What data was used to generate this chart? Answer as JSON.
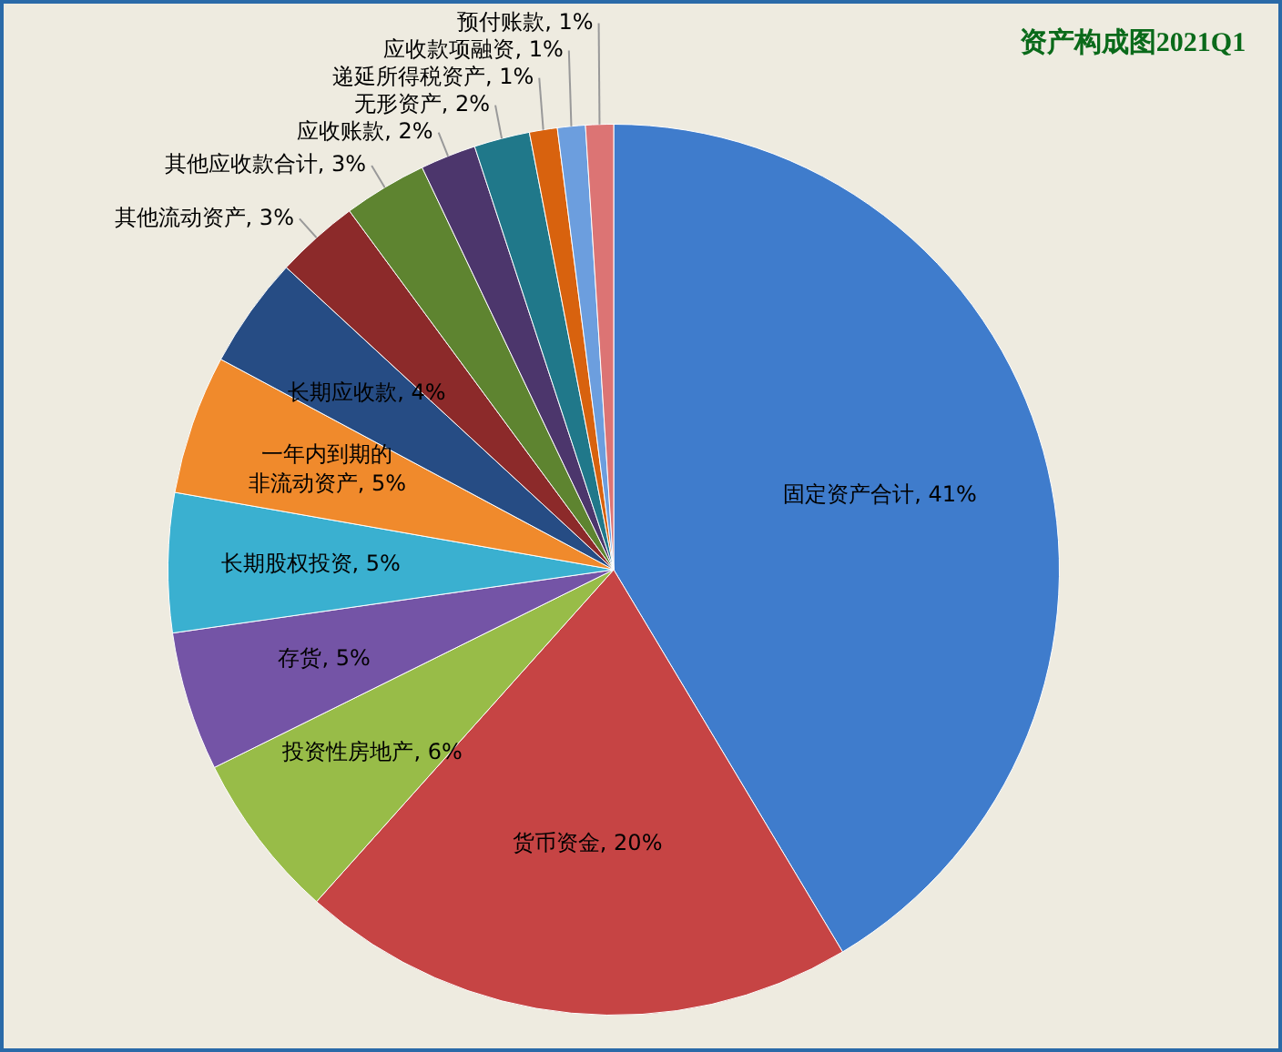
{
  "chart_data": {
    "type": "pie",
    "title": "资产构成图2021Q1",
    "categories": [
      "固定资产合计",
      "货币资金",
      "投资性房地产",
      "存货",
      "长期股权投资",
      "一年内到期的非流动资产",
      "长期应收款",
      "其他流动资产",
      "其他应收款合计",
      "应收账款",
      "无形资产",
      "递延所得税资产",
      "应收款项融资",
      "预付账款"
    ],
    "values": [
      41,
      20,
      6,
      5,
      5,
      5,
      4,
      3,
      3,
      2,
      2,
      1,
      1,
      1
    ],
    "value_labels": [
      "41%",
      "20%",
      "6%",
      "5%",
      "5%",
      "5%",
      "4%",
      "3%",
      "3%",
      "2%",
      "2%",
      "1%",
      "1%",
      "1%"
    ],
    "colors": [
      "#3f7ccc",
      "#c64444",
      "#98bc48",
      "#7454a6",
      "#3ab0d0",
      "#f08a2c",
      "#264c84",
      "#8c2a2a",
      "#5e8430",
      "#4c366c",
      "#20788a",
      "#d8620e",
      "#6c9ede",
      "#dc7474"
    ],
    "legend": false
  }
}
